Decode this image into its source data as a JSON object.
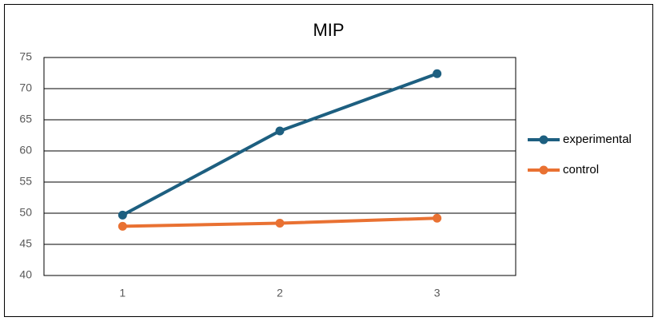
{
  "chart_data": {
    "type": "line",
    "title": "MIP",
    "categories": [
      "1",
      "2",
      "3"
    ],
    "series": [
      {
        "name": "experimental",
        "color": "#1d5f80",
        "values": [
          49.7,
          63.2,
          72.4
        ]
      },
      {
        "name": "control",
        "color": "#e97132",
        "values": [
          47.9,
          48.4,
          49.2
        ]
      }
    ],
    "ylim": [
      40,
      75
    ],
    "yticks": [
      40,
      45,
      50,
      55,
      60,
      65,
      70,
      75
    ],
    "grid": true,
    "legend": "right"
  }
}
